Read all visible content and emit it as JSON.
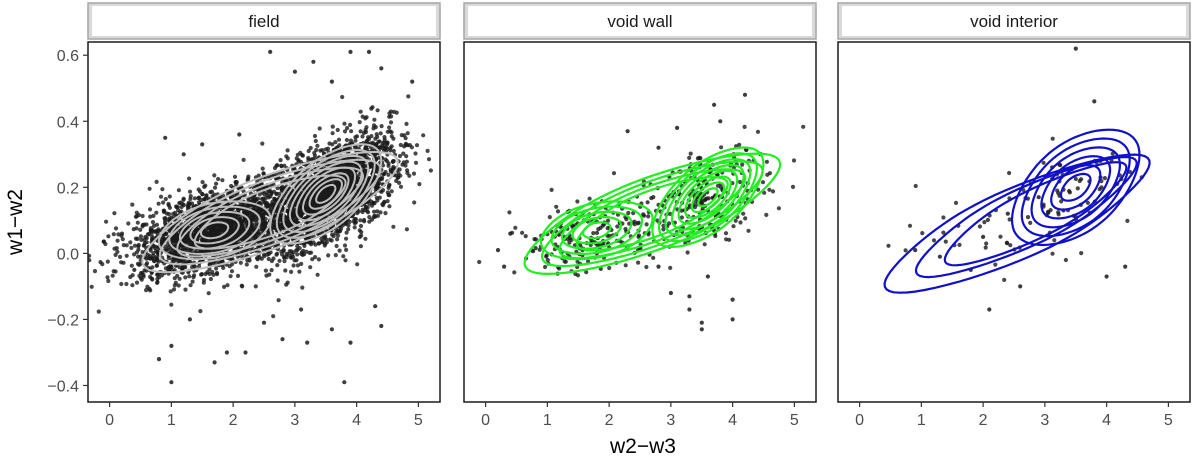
{
  "chart_data": {
    "type": "scatter",
    "xlabel": "w2−w3",
    "ylabel": "w1−w2",
    "xlim": [
      -0.35,
      5.35
    ],
    "ylim": [
      -0.45,
      0.64
    ],
    "x_ticks": [
      "0",
      "1",
      "2",
      "3",
      "4",
      "5"
    ],
    "x_tick_values": [
      0,
      1,
      2,
      3,
      4,
      5
    ],
    "y_ticks": [
      "0.6",
      "0.4",
      "0.2",
      "0.0",
      "−0.2",
      "−0.4"
    ],
    "y_tick_values": [
      0.6,
      0.4,
      0.2,
      0.0,
      -0.2,
      -0.4
    ],
    "grid": false,
    "points_color": "#1a1a1a",
    "panels": [
      {
        "name": "field",
        "contour_color": "#bdbdbd",
        "n_points": 4500,
        "peaks": [
          {
            "x": 1.7,
            "y": 0.07
          },
          {
            "x": 3.5,
            "y": 0.18
          }
        ],
        "outlier_points": [
          [
            2.6,
            0.61
          ],
          [
            3.9,
            0.61
          ],
          [
            4.2,
            0.61
          ],
          [
            3.3,
            0.58
          ],
          [
            4.4,
            0.56
          ],
          [
            4.9,
            0.52
          ],
          [
            3.0,
            0.55
          ],
          [
            3.6,
            0.52
          ],
          [
            1.5,
            0.33
          ],
          [
            1.2,
            0.3
          ],
          [
            0.9,
            0.35
          ],
          [
            2.1,
            0.36
          ],
          [
            0.2,
            0.06
          ],
          [
            0.4,
            -0.05
          ],
          [
            0.8,
            -0.32
          ],
          [
            1.0,
            -0.39
          ],
          [
            1.0,
            -0.28
          ],
          [
            1.7,
            -0.33
          ],
          [
            1.9,
            -0.3
          ],
          [
            2.2,
            -0.3
          ],
          [
            2.8,
            -0.26
          ],
          [
            3.2,
            -0.27
          ],
          [
            3.8,
            -0.39
          ],
          [
            3.9,
            -0.27
          ],
          [
            3.1,
            -0.17
          ],
          [
            3.6,
            -0.23
          ],
          [
            4.3,
            -0.16
          ],
          [
            4.4,
            -0.22
          ],
          [
            1.3,
            -0.2
          ],
          [
            2.5,
            -0.21
          ]
        ]
      },
      {
        "name": "void wall",
        "contour_color": "#22ee22",
        "n_points": 420,
        "peaks": [
          {
            "x": 1.8,
            "y": 0.07
          },
          {
            "x": 3.6,
            "y": 0.17
          }
        ],
        "outlier_points": [
          [
            3.1,
            0.38
          ],
          [
            3.8,
            0.4
          ],
          [
            3.7,
            0.45
          ],
          [
            4.2,
            0.48
          ],
          [
            2.3,
            0.37
          ],
          [
            2.8,
            0.32
          ],
          [
            0.4,
            0.06
          ],
          [
            0.2,
            0.01
          ],
          [
            0.3,
            -0.04
          ],
          [
            3.0,
            -0.12
          ],
          [
            3.3,
            -0.17
          ],
          [
            3.5,
            -0.21
          ],
          [
            3.5,
            -0.23
          ],
          [
            4.0,
            -0.2
          ],
          [
            4.0,
            -0.14
          ],
          [
            3.3,
            -0.13
          ],
          [
            3.6,
            -0.07
          ],
          [
            2.8,
            -0.04
          ],
          [
            1.8,
            0.0
          ],
          [
            2.9,
            0.16
          ]
        ]
      },
      {
        "name": "void interior",
        "contour_color": "#1010cc",
        "n_points": 95,
        "peaks": [
          {
            "x": 3.5,
            "y": 0.2
          }
        ],
        "outlier_points": [
          [
            3.5,
            0.62
          ],
          [
            3.8,
            0.46
          ],
          [
            3.9,
            0.28
          ],
          [
            2.6,
            -0.1
          ],
          [
            2.1,
            -0.17
          ],
          [
            4.3,
            -0.04
          ],
          [
            2.9,
            0.17
          ],
          [
            4.0,
            -0.07
          ],
          [
            1.8,
            -0.05
          ],
          [
            1.3,
            -0.01
          ],
          [
            0.9,
            0.01
          ],
          [
            3.3,
            0.13
          ],
          [
            3.9,
            0.23
          ],
          [
            2.0,
            0.05
          ],
          [
            2.4,
            0.12
          ]
        ]
      }
    ]
  }
}
